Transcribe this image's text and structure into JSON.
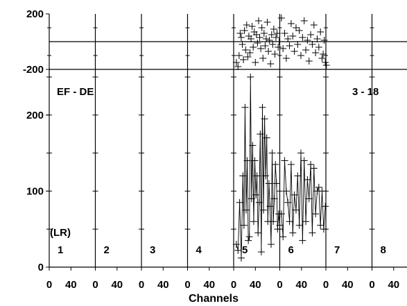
{
  "chart_data": [
    {
      "type": "scatter",
      "ylim": [
        -200,
        200
      ],
      "yticks": [
        200,
        -200
      ],
      "zero_line": true,
      "marker": "plus",
      "panels": [
        {
          "points": []
        },
        {
          "points": []
        },
        {
          "points": []
        },
        {
          "points": []
        },
        {
          "points": [
            [
              5,
              -150
            ],
            [
              8,
              -180
            ],
            [
              10,
              -100
            ],
            [
              12,
              60
            ],
            [
              14,
              30
            ],
            [
              16,
              -20
            ],
            [
              18,
              -130
            ],
            [
              20,
              80
            ],
            [
              22,
              -60
            ],
            [
              24,
              120
            ],
            [
              26,
              -110
            ],
            [
              28,
              40
            ],
            [
              30,
              -80
            ],
            [
              32,
              20
            ],
            [
              34,
              110
            ],
            [
              36,
              -40
            ],
            [
              38,
              70
            ],
            [
              40,
              -150
            ],
            [
              42,
              50
            ],
            [
              44,
              -10
            ],
            [
              46,
              150
            ],
            [
              48,
              30
            ],
            [
              50,
              -50
            ],
            [
              52,
              100
            ],
            [
              54,
              -120
            ],
            [
              56,
              60
            ],
            [
              58,
              -30
            ],
            [
              60,
              20
            ],
            [
              62,
              140
            ],
            [
              64,
              -70
            ],
            [
              66,
              10
            ],
            [
              68,
              -160
            ],
            [
              70,
              50
            ],
            [
              72,
              -20
            ],
            [
              74,
              90
            ],
            [
              76,
              -90
            ],
            [
              78,
              30
            ],
            [
              80,
              60
            ],
            [
              82,
              -40
            ],
            [
              84,
              0
            ]
          ]
        },
        {
          "points": [
            [
              3,
              170
            ],
            [
              6,
              -50
            ],
            [
              9,
              60
            ],
            [
              12,
              -120
            ],
            [
              15,
              20
            ],
            [
              18,
              -30
            ],
            [
              21,
              130
            ],
            [
              24,
              40
            ],
            [
              27,
              -70
            ],
            [
              30,
              100
            ],
            [
              33,
              -20
            ],
            [
              36,
              80
            ],
            [
              39,
              -100
            ],
            [
              42,
              30
            ],
            [
              45,
              150
            ],
            [
              48,
              -60
            ],
            [
              51,
              10
            ],
            [
              54,
              -140
            ],
            [
              57,
              50
            ],
            [
              60,
              -20
            ],
            [
              63,
              120
            ],
            [
              66,
              -80
            ],
            [
              69,
              20
            ],
            [
              72,
              -40
            ],
            [
              75,
              70
            ],
            [
              78,
              -120
            ],
            [
              80,
              -90
            ],
            [
              82,
              10
            ],
            [
              84,
              -150
            ],
            [
              86,
              -170
            ]
          ]
        },
        {
          "points": []
        },
        {
          "points": []
        }
      ]
    },
    {
      "type": "line",
      "title_left": "EF - DE",
      "title_right": "3 - 18",
      "xlabel": "Channels",
      "ylabel": "",
      "ylim": [
        0,
        260
      ],
      "yticks": [
        0,
        100,
        200
      ],
      "xticks": [
        0,
        40
      ],
      "xrange_per_panel": [
        0,
        85
      ],
      "panel_prefix": "(LR)",
      "panels": [
        {
          "label": "1",
          "points": []
        },
        {
          "label": "2",
          "points": []
        },
        {
          "label": "3",
          "points": []
        },
        {
          "label": "4",
          "points": []
        },
        {
          "label": "5",
          "points": [
            [
              5,
              30
            ],
            [
              8,
              22
            ],
            [
              11,
              85
            ],
            [
              14,
              12
            ],
            [
              17,
              120
            ],
            [
              19,
              55
            ],
            [
              21,
              210
            ],
            [
              23,
              75
            ],
            [
              25,
              140
            ],
            [
              27,
              35
            ],
            [
              29,
              40
            ],
            [
              31,
              250
            ],
            [
              33,
              90
            ],
            [
              35,
              160
            ],
            [
              37,
              60
            ],
            [
              39,
              140
            ],
            [
              41,
              95
            ],
            [
              43,
              120
            ],
            [
              45,
              45
            ],
            [
              47,
              85
            ],
            [
              49,
              175
            ],
            [
              51,
              20
            ],
            [
              53,
              210
            ],
            [
              55,
              75
            ],
            [
              57,
              195
            ],
            [
              59,
              120
            ],
            [
              61,
              170
            ],
            [
              63,
              60
            ],
            [
              65,
              110
            ],
            [
              67,
              80
            ],
            [
              69,
              30
            ],
            [
              71,
              150
            ],
            [
              73,
              60
            ],
            [
              75,
              90
            ],
            [
              77,
              135
            ],
            [
              79,
              110
            ],
            [
              81,
              50
            ],
            [
              83,
              70
            ],
            [
              85,
              55
            ]
          ]
        },
        {
          "label": "6",
          "points": [
            [
              3,
              70
            ],
            [
              6,
              40
            ],
            [
              9,
              140
            ],
            [
              12,
              100
            ],
            [
              15,
              85
            ],
            [
              18,
              60
            ],
            [
              21,
              135
            ],
            [
              24,
              45
            ],
            [
              27,
              95
            ],
            [
              30,
              75
            ],
            [
              33,
              120
            ],
            [
              36,
              55
            ],
            [
              39,
              150
            ],
            [
              42,
              35
            ],
            [
              45,
              140
            ],
            [
              48,
              60
            ],
            [
              51,
              115
            ],
            [
              54,
              90
            ],
            [
              57,
              135
            ],
            [
              60,
              45
            ],
            [
              63,
              130
            ],
            [
              66,
              70
            ],
            [
              69,
              100
            ],
            [
              72,
              105
            ],
            [
              75,
              55
            ],
            [
              78,
              100
            ],
            [
              81,
              50
            ],
            [
              84,
              80
            ]
          ]
        },
        {
          "label": "7",
          "points": []
        },
        {
          "label": "8",
          "points": []
        }
      ]
    }
  ]
}
